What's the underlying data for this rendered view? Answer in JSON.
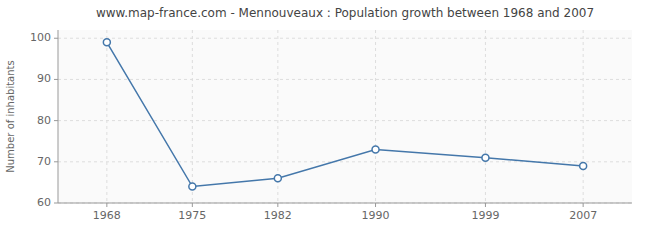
{
  "chart_data": {
    "type": "line",
    "title": "www.map-france.com - Mennouveaux : Population growth between 1968 and 2007",
    "ylabel": "Number of inhabitants",
    "x": [
      1968,
      1975,
      1982,
      1990,
      1999,
      2007
    ],
    "values": [
      99,
      64,
      66,
      73,
      71,
      69
    ],
    "color": "#4477aa",
    "marker": "circle",
    "xlim": [
      1964,
      2011
    ],
    "xticks": [
      1968,
      1975,
      1982,
      1990,
      1999,
      2007
    ],
    "ylim": [
      60,
      102
    ],
    "yticks": [
      60,
      70,
      80,
      90,
      100
    ],
    "grid": true
  }
}
